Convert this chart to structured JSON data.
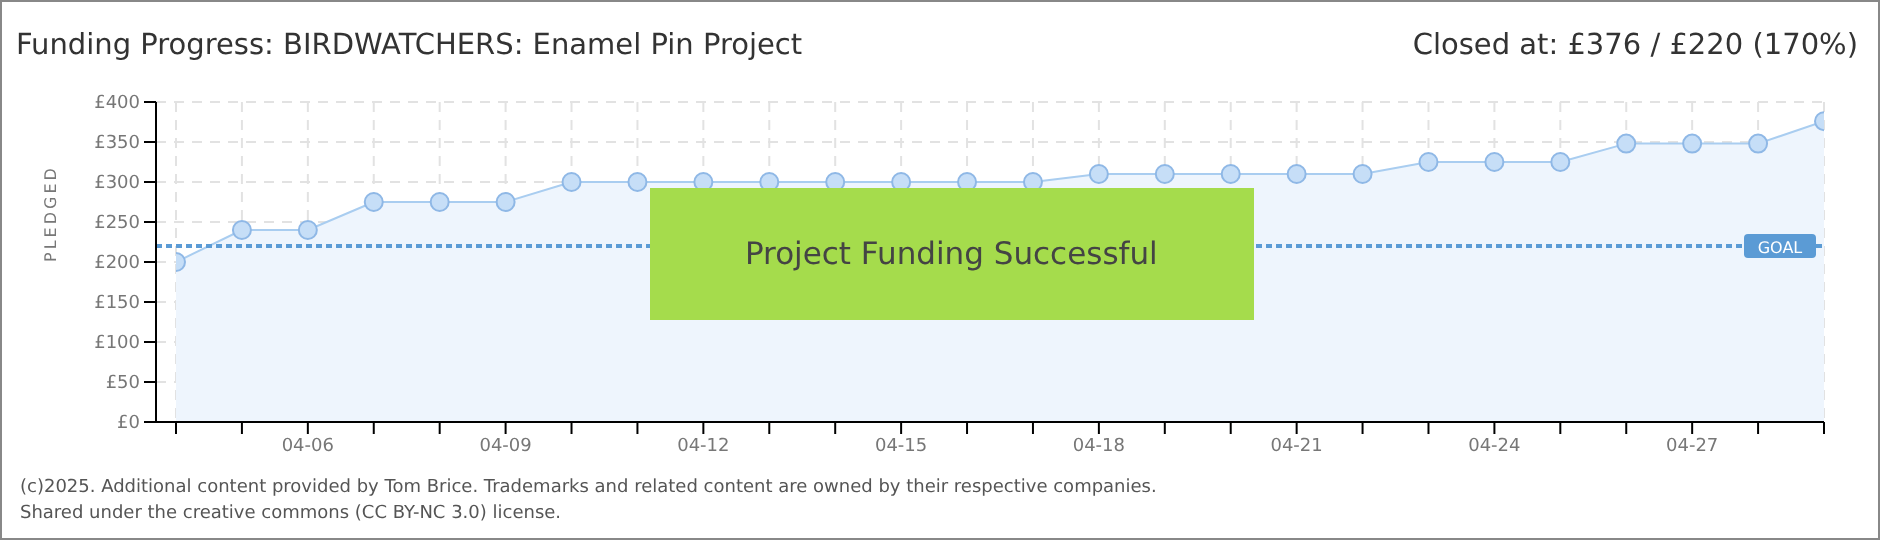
{
  "chart_data": {
    "type": "area",
    "title": "Funding Progress: BIRDWATCHERS: Enamel Pin Project",
    "subtitle": "Closed at:  £376 / £220 (170%)",
    "ylabel": "PLEDGED",
    "categories": [
      null,
      null,
      "04-06",
      null,
      null,
      "04-09",
      null,
      null,
      "04-12",
      null,
      null,
      "04-15",
      null,
      null,
      "04-18",
      null,
      null,
      "04-21",
      null,
      null,
      "04-24",
      null,
      null,
      "04-27",
      null,
      null
    ],
    "series": [
      {
        "color": "#a9cdf0",
        "values": [
          200,
          240,
          240,
          275,
          275,
          275,
          300,
          300,
          300,
          300,
          300,
          300,
          300,
          300,
          310,
          310,
          310,
          310,
          310,
          325,
          325,
          325,
          348,
          348,
          348,
          376
        ]
      }
    ],
    "ylim": [
      0,
      400
    ],
    "yticks": [
      {
        "value": 0,
        "label": "£0"
      },
      {
        "value": 50,
        "label": "£50"
      },
      {
        "value": 100,
        "label": "£100"
      },
      {
        "value": 150,
        "label": "£150"
      },
      {
        "value": 200,
        "label": "£200"
      },
      {
        "value": 250,
        "label": "£250"
      },
      {
        "value": 300,
        "label": "£300"
      },
      {
        "value": 350,
        "label": "£350"
      },
      {
        "value": 400,
        "label": "£400"
      }
    ],
    "ref_lines": [
      {
        "axis": "y",
        "value": 220,
        "label": "GOAL",
        "color": "#5b9bd5",
        "line_style": "dotted"
      }
    ],
    "grid": true,
    "marker": "circle",
    "legend": false,
    "annotations": [
      {
        "text": "Project Funding Successful",
        "x": "04-12",
        "y": 210
      },
      "(c)2025. Additional content provided by Tom Brice. Trademarks and related content are owned by their respective companies.",
      "Shared under the creative commons (CC BY-NC 3.0) license."
    ]
  }
}
